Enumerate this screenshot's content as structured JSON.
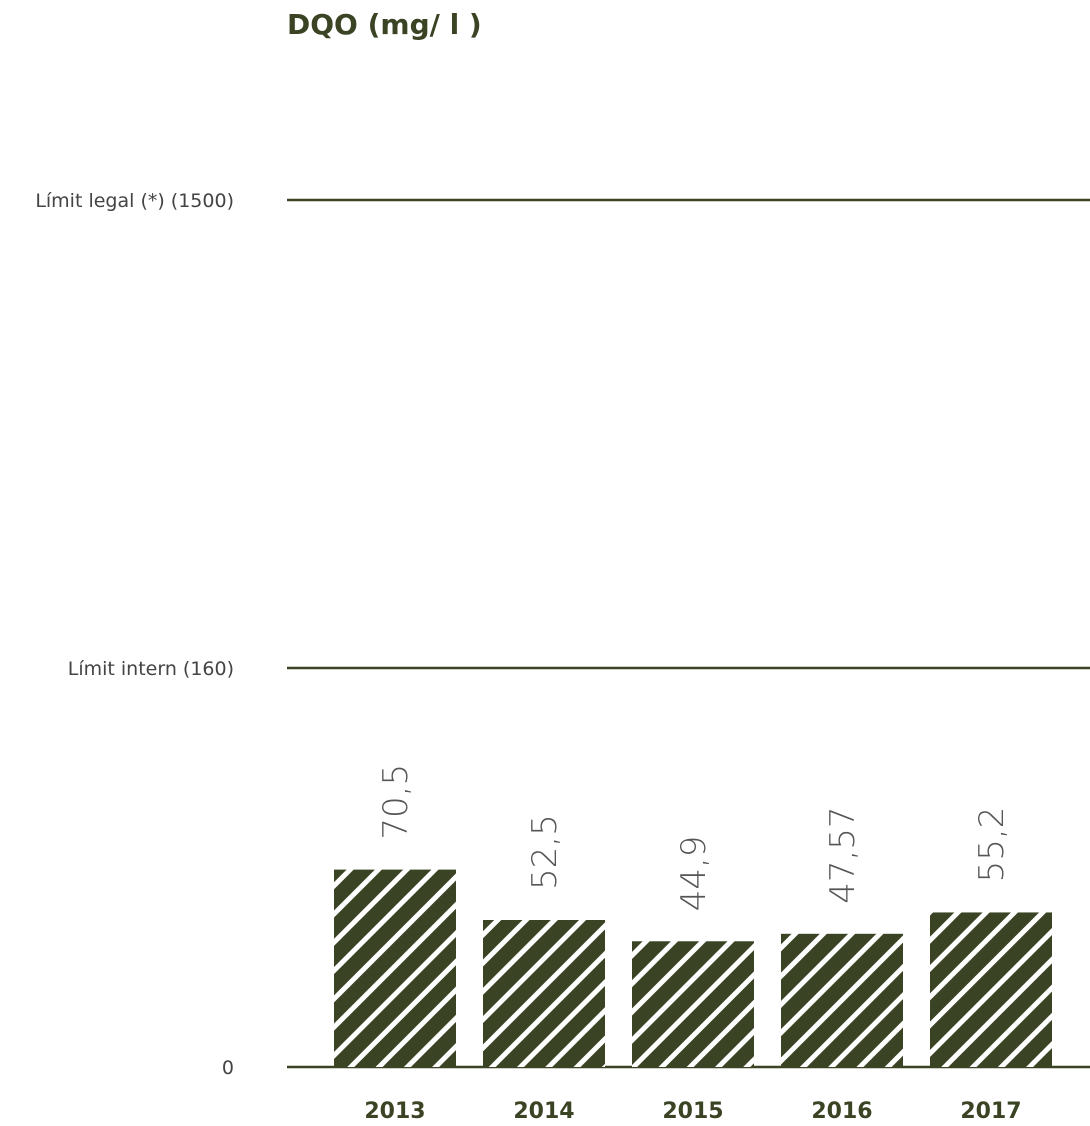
{
  "chart_data": {
    "type": "bar",
    "title": "DQO (mg/ l )",
    "categories": [
      "2013",
      "2014",
      "2015",
      "2016",
      "2017"
    ],
    "values": [
      70.5,
      52.5,
      44.9,
      47.57,
      55.2
    ],
    "value_labels": [
      "70,5",
      "52,5",
      "44,9",
      "47,57",
      "55,2"
    ],
    "baseline_label": "0",
    "reference_lines": [
      {
        "label": "Límit legal (*) (1500)",
        "value": 1500
      },
      {
        "label": "Límit intern (160)",
        "value": 160
      }
    ],
    "axis_break": true,
    "grid": false,
    "legend": "none",
    "colors": {
      "bar": "#3a4323",
      "stripe": "#ffffff",
      "line": "#3a4323",
      "text": "#3a4323"
    }
  }
}
